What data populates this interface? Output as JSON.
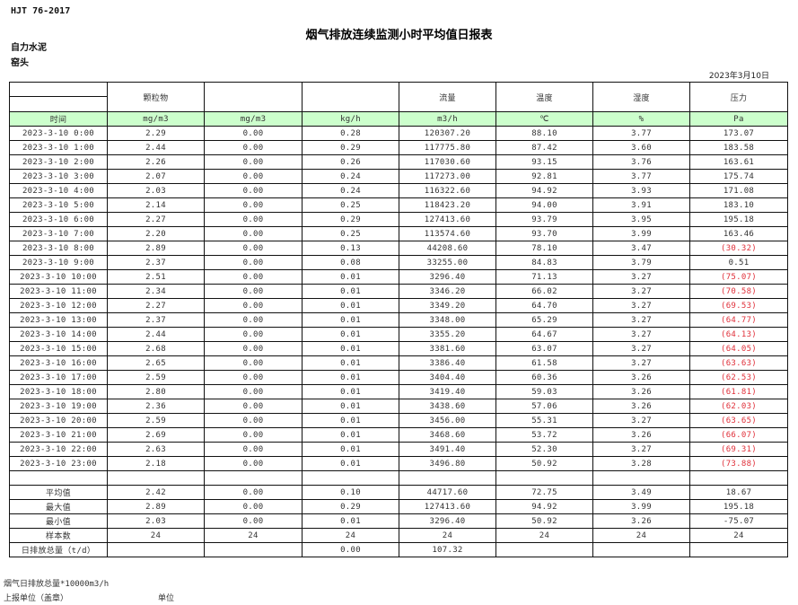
{
  "header": {
    "standard": "HJT  76-2017",
    "title": "烟气排放连续监测小时平均值日报表",
    "company": "自力水泥",
    "unit": "窑头",
    "date": "2023年3月10日"
  },
  "columns": [
    {
      "name": "",
      "unit": "时间"
    },
    {
      "name": "颗粒物",
      "unit": "mg/m3"
    },
    {
      "name": "",
      "unit": "mg/m3"
    },
    {
      "name": "",
      "unit": "kg/h"
    },
    {
      "name": "流量",
      "unit": "m3/h"
    },
    {
      "name": "温度",
      "unit": "℃"
    },
    {
      "name": "湿度",
      "unit": "%"
    },
    {
      "name": "压力",
      "unit": "Pa"
    }
  ],
  "rows": [
    [
      "2023-3-10 0:00",
      "2.29",
      "0.00",
      "0.28",
      "120307.20",
      "88.10",
      "3.77",
      "173.07"
    ],
    [
      "2023-3-10 1:00",
      "2.44",
      "0.00",
      "0.29",
      "117775.80",
      "87.42",
      "3.60",
      "183.58"
    ],
    [
      "2023-3-10 2:00",
      "2.26",
      "0.00",
      "0.26",
      "117030.60",
      "93.15",
      "3.76",
      "163.61"
    ],
    [
      "2023-3-10 3:00",
      "2.07",
      "0.00",
      "0.24",
      "117273.00",
      "92.81",
      "3.77",
      "175.74"
    ],
    [
      "2023-3-10 4:00",
      "2.03",
      "0.00",
      "0.24",
      "116322.60",
      "94.92",
      "3.93",
      "171.08"
    ],
    [
      "2023-3-10 5:00",
      "2.14",
      "0.00",
      "0.25",
      "118423.20",
      "94.00",
      "3.91",
      "183.10"
    ],
    [
      "2023-3-10 6:00",
      "2.27",
      "0.00",
      "0.29",
      "127413.60",
      "93.79",
      "3.95",
      "195.18"
    ],
    [
      "2023-3-10 7:00",
      "2.20",
      "0.00",
      "0.25",
      "113574.60",
      "93.70",
      "3.99",
      "163.46"
    ],
    [
      "2023-3-10 8:00",
      "2.89",
      "0.00",
      "0.13",
      "44208.60",
      "78.10",
      "3.47",
      "(30.32)"
    ],
    [
      "2023-3-10 9:00",
      "2.37",
      "0.00",
      "0.08",
      "33255.00",
      "84.83",
      "3.79",
      "0.51"
    ],
    [
      "2023-3-10 10:00",
      "2.51",
      "0.00",
      "0.01",
      "3296.40",
      "71.13",
      "3.27",
      "(75.07)"
    ],
    [
      "2023-3-10 11:00",
      "2.34",
      "0.00",
      "0.01",
      "3346.20",
      "66.02",
      "3.27",
      "(70.58)"
    ],
    [
      "2023-3-10 12:00",
      "2.27",
      "0.00",
      "0.01",
      "3349.20",
      "64.70",
      "3.27",
      "(69.53)"
    ],
    [
      "2023-3-10 13:00",
      "2.37",
      "0.00",
      "0.01",
      "3348.00",
      "65.29",
      "3.27",
      "(64.77)"
    ],
    [
      "2023-3-10 14:00",
      "2.44",
      "0.00",
      "0.01",
      "3355.20",
      "64.67",
      "3.27",
      "(64.13)"
    ],
    [
      "2023-3-10 15:00",
      "2.68",
      "0.00",
      "0.01",
      "3381.60",
      "63.07",
      "3.27",
      "(64.05)"
    ],
    [
      "2023-3-10 16:00",
      "2.65",
      "0.00",
      "0.01",
      "3386.40",
      "61.58",
      "3.27",
      "(63.63)"
    ],
    [
      "2023-3-10 17:00",
      "2.59",
      "0.00",
      "0.01",
      "3404.40",
      "60.36",
      "3.26",
      "(62.53)"
    ],
    [
      "2023-3-10 18:00",
      "2.80",
      "0.00",
      "0.01",
      "3419.40",
      "59.03",
      "3.26",
      "(61.81)"
    ],
    [
      "2023-3-10 19:00",
      "2.36",
      "0.00",
      "0.01",
      "3438.60",
      "57.06",
      "3.26",
      "(62.03)"
    ],
    [
      "2023-3-10 20:00",
      "2.59",
      "0.00",
      "0.01",
      "3456.00",
      "55.31",
      "3.27",
      "(63.65)"
    ],
    [
      "2023-3-10 21:00",
      "2.69",
      "0.00",
      "0.01",
      "3468.60",
      "53.72",
      "3.26",
      "(66.07)"
    ],
    [
      "2023-3-10 22:00",
      "2.63",
      "0.00",
      "0.01",
      "3491.40",
      "52.30",
      "3.27",
      "(69.31)"
    ],
    [
      "2023-3-10 23:00",
      "2.18",
      "0.00",
      "0.01",
      "3496.80",
      "50.92",
      "3.28",
      "(73.88)"
    ]
  ],
  "summary": [
    [
      "平均值",
      "2.42",
      "0.00",
      "0.10",
      "44717.60",
      "72.75",
      "3.49",
      "18.67"
    ],
    [
      "最大值",
      "2.89",
      "0.00",
      "0.29",
      "127413.60",
      "94.92",
      "3.99",
      "195.18"
    ],
    [
      "最小值",
      "2.03",
      "0.00",
      "0.01",
      "3296.40",
      "50.92",
      "3.26",
      "-75.07"
    ],
    [
      "样本数",
      "24",
      "24",
      "24",
      "24",
      "24",
      "24",
      "24"
    ],
    [
      "日排放总量（t/d）",
      "",
      "",
      "0.00",
      "107.32",
      "",
      "",
      ""
    ]
  ],
  "colors": {
    "unit_row_bg": "#ccffcc",
    "negative": "#e0303a"
  },
  "footer": {
    "note": "烟气日排放总量*10000m3/h",
    "reporter": "上报单位（盖章）",
    "unit_label": "单位"
  }
}
